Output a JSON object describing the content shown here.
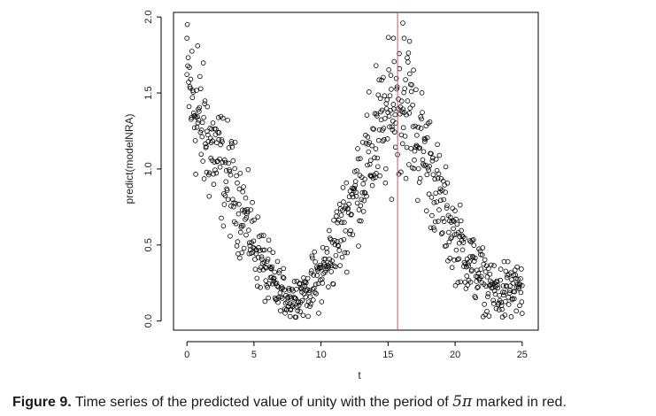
{
  "chart_data": {
    "type": "scatter",
    "xlabel": "t",
    "ylabel": "predict(modelNRA)",
    "xlim": [
      -1,
      26.2
    ],
    "ylim": [
      -0.06,
      2.03
    ],
    "xticks": [
      0,
      5,
      10,
      15,
      20,
      25
    ],
    "yticks": [
      0.0,
      0.5,
      1.0,
      1.5,
      2.0
    ],
    "ytick_labels": [
      "0.0",
      "0.5",
      "1.0",
      "1.5",
      "2.0"
    ],
    "grid": false,
    "legend": "none",
    "marker": "open-circle",
    "point_color": "#000000",
    "vline": {
      "x": 15.71,
      "color": "#d9534f"
    },
    "trend_knots": [
      [
        0,
        1.58
      ],
      [
        1,
        1.27
      ],
      [
        2,
        1.12
      ],
      [
        3,
        0.95
      ],
      [
        4,
        0.76
      ],
      [
        5,
        0.52
      ],
      [
        6,
        0.3
      ],
      [
        7,
        0.18
      ],
      [
        8,
        0.16
      ],
      [
        9,
        0.2
      ],
      [
        10,
        0.3
      ],
      [
        11,
        0.48
      ],
      [
        12,
        0.72
      ],
      [
        13,
        0.95
      ],
      [
        14,
        1.15
      ],
      [
        15,
        1.33
      ],
      [
        15.7,
        1.45
      ],
      [
        16.5,
        1.4
      ],
      [
        17,
        1.25
      ],
      [
        18,
        1.05
      ],
      [
        19,
        0.75
      ],
      [
        20,
        0.55
      ],
      [
        21,
        0.4
      ],
      [
        22,
        0.28
      ],
      [
        23,
        0.18
      ],
      [
        24,
        0.2
      ],
      [
        25,
        0.22
      ]
    ],
    "notable_points": [
      {
        "x": 16.1,
        "y": 1.96
      },
      {
        "x": 15.4,
        "y": 1.86
      },
      {
        "x": 16.2,
        "y": 1.86
      },
      {
        "x": 16.6,
        "y": 1.84
      },
      {
        "x": 0.0,
        "y": 1.86
      },
      {
        "x": 0.8,
        "y": 1.81
      },
      {
        "x": 14.1,
        "y": 1.68
      },
      {
        "x": 7.7,
        "y": 0.03
      },
      {
        "x": 25.0,
        "y": 0.05
      }
    ]
  },
  "caption": {
    "label": "Figure 9.",
    "text": " Time series of the predicted value of unity with the period of ",
    "period": "5π",
    "suffix": " marked in red."
  }
}
